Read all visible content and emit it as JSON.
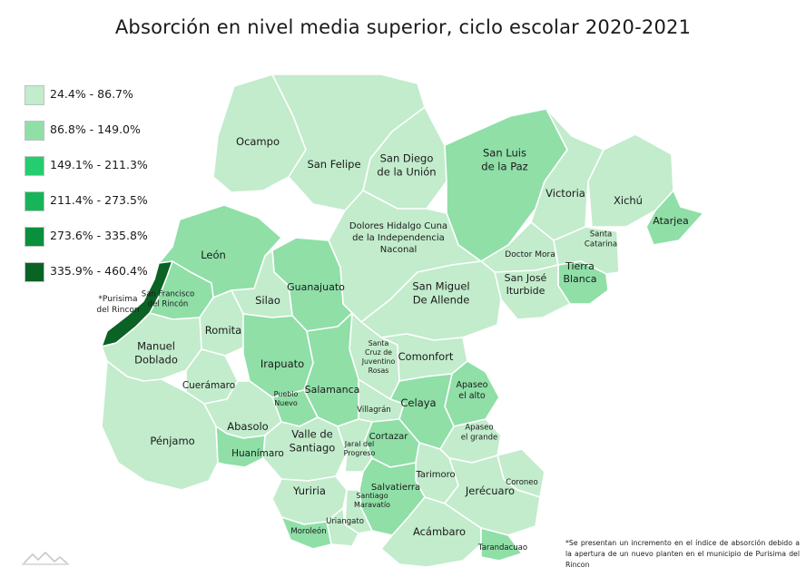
{
  "title": "Absorción en nivel media superior, ciclo escolar 2020-2021",
  "legend": [
    {
      "label": "24.4% - 86.7%",
      "color": "#c2eccc"
    },
    {
      "label": "86.8% - 149.0%",
      "color": "#8fdfa7"
    },
    {
      "label": "149.1% - 211.3%",
      "color": "#25cd71"
    },
    {
      "label": "211.4% - 273.5%",
      "color": "#17b45a"
    },
    {
      "label": "273.6% - 335.8%",
      "color": "#0a8f3c"
    },
    {
      "label": "335.9% - 460.4%",
      "color": "#0a6225"
    }
  ],
  "municipalities": {
    "ocampo": {
      "name": "Ocampo",
      "class": "24.4% - 86.7%"
    },
    "san_felipe": {
      "name": "San Felipe",
      "class": "24.4% - 86.7%"
    },
    "san_diego": {
      "name": "San Diego\nde la Unión",
      "class": "24.4% - 86.7%"
    },
    "san_luis_paz": {
      "name": "San Luis\nde la Paz",
      "class": "86.8% - 149.0%"
    },
    "victoria": {
      "name": "Victoria",
      "class": "24.4% - 86.7%"
    },
    "xichu": {
      "name": "Xichú",
      "class": "24.4% - 86.7%"
    },
    "atarjea": {
      "name": "Atarjea",
      "class": "86.8% - 149.0%"
    },
    "dolores": {
      "name": "Dolores Hidalgo Cuna\nde la Independencia\nNaconal",
      "class": "24.4% - 86.7%"
    },
    "leon": {
      "name": "León",
      "class": "86.8% - 149.0%"
    },
    "guanajuato": {
      "name": "Guanajuato",
      "class": "86.8% - 149.0%"
    },
    "silao": {
      "name": "Silao",
      "class": "24.4% - 86.7%"
    },
    "doctor_mora": {
      "name": "Doctor Mora",
      "class": "24.4% - 86.7%"
    },
    "santa_catarina": {
      "name": "Santa\nCatarina",
      "class": "24.4% - 86.7%"
    },
    "tierra_blanca": {
      "name": "Tierra\nBlanca",
      "class": "86.8% - 149.0%"
    },
    "san_jose_iturbide": {
      "name": "San José\nIturbide",
      "class": "24.4% - 86.7%"
    },
    "san_miguel": {
      "name": "San Miguel\nDe Allende",
      "class": "24.4% - 86.7%"
    },
    "purisima": {
      "name": "*Purisima\ndel Rincon",
      "class": "335.9% - 460.4%"
    },
    "san_francisco": {
      "name": "San Francisco\ndel Rincón",
      "class": "86.8% - 149.0%"
    },
    "romita": {
      "name": "Romita",
      "class": "24.4% - 86.7%"
    },
    "manuel_doblado": {
      "name": "Manuel\nDoblado",
      "class": "24.4% - 86.7%"
    },
    "irapuato": {
      "name": "Irapuato",
      "class": "86.8% - 149.0%"
    },
    "santa_cruz": {
      "name": "Santa\nCruz de\nJuventino\nRosas",
      "class": "24.4% - 86.7%"
    },
    "comonfort": {
      "name": "Comonfort",
      "class": "24.4% - 86.7%"
    },
    "cueramaro": {
      "name": "Cuerámaro",
      "class": "24.4% - 86.7%"
    },
    "salamanca": {
      "name": "Salamanca",
      "class": "86.8% - 149.0%"
    },
    "apaseo_alto": {
      "name": "Apaseo\nel alto",
      "class": "86.8% - 149.0%"
    },
    "pueblo_nuevo": {
      "name": "Pueblo\nNuevo",
      "class": "86.8% - 149.0%"
    },
    "villagran": {
      "name": "Villagrán",
      "class": "24.4% - 86.7%"
    },
    "celaya": {
      "name": "Celaya",
      "class": "86.8% - 149.0%"
    },
    "apaseo_grande": {
      "name": "Apaseo\nel grande",
      "class": "24.4% - 86.7%"
    },
    "penjamo": {
      "name": "Pénjamo",
      "class": "24.4% - 86.7%"
    },
    "abasolo": {
      "name": "Abasolo",
      "class": "24.4% - 86.7%"
    },
    "cortazar": {
      "name": "Cortazar",
      "class": "86.8% - 149.0%"
    },
    "huanimaro": {
      "name": "Huanímaro",
      "class": "86.8% - 149.0%"
    },
    "valle_santiago": {
      "name": "Valle de\nSantiago",
      "class": "24.4% - 86.7%"
    },
    "jaral": {
      "name": "Jaral del\nProgreso",
      "class": "24.4% - 86.7%"
    },
    "tarimoro": {
      "name": "Tarimoro",
      "class": "24.4% - 86.7%"
    },
    "coroneo": {
      "name": "Coroneo",
      "class": "24.4% - 86.7%"
    },
    "salvatierra": {
      "name": "Salvatierra",
      "class": "86.8% - 149.0%"
    },
    "jerecuaro": {
      "name": "Jerécuaro",
      "class": "24.4% - 86.7%"
    },
    "yuriria": {
      "name": "Yuriria",
      "class": "24.4% - 86.7%"
    },
    "santiago_maravatio": {
      "name": "Santiago\nMaravatío",
      "class": "24.4% - 86.7%"
    },
    "uriangato": {
      "name": "Uriangato",
      "class": "24.4% - 86.7%"
    },
    "moroleon": {
      "name": "Moroleón",
      "class": "86.8% - 149.0%"
    },
    "acambaro": {
      "name": "Acámbaro",
      "class": "24.4% - 86.7%"
    },
    "tarandacuao": {
      "name": "Tarandacuao",
      "class": "86.8% - 149.0%"
    }
  },
  "footnote": "*Se presentan un incremento en el índice de absorción debido a la apertura de un nuevo planten en el municipio de Purisima del Rincon"
}
